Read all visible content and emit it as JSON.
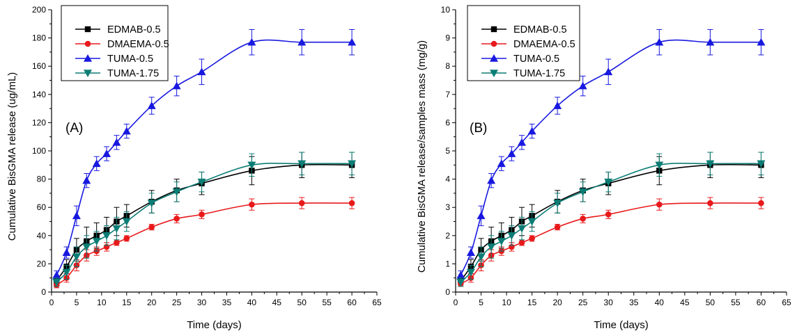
{
  "chart_data": [
    {
      "type": "line",
      "panel_label": "(A)",
      "xlabel": "Time (days)",
      "ylabel": "Cumulative BisGMA release (ug/mL)",
      "xlim": [
        0,
        65
      ],
      "ylim": [
        0,
        200
      ],
      "xticks": [
        0,
        5,
        10,
        15,
        20,
        25,
        30,
        35,
        40,
        45,
        50,
        55,
        60,
        65
      ],
      "yticks": [
        0,
        20,
        40,
        60,
        80,
        100,
        120,
        140,
        160,
        180,
        200
      ],
      "grid": false,
      "legend_position": "top-left",
      "x": [
        1,
        3,
        5,
        7,
        9,
        11,
        13,
        15,
        20,
        25,
        30,
        40,
        50,
        60
      ],
      "series": [
        {
          "name": "EDMAB-0.5",
          "color": "#000000",
          "marker": "square",
          "values": [
            8,
            18,
            30,
            36,
            40,
            44,
            50,
            54,
            64,
            72,
            77,
            86,
            90,
            90
          ],
          "errors": [
            3,
            5,
            8,
            10,
            9,
            9,
            10,
            8,
            8,
            8,
            8,
            10,
            9,
            9
          ]
        },
        {
          "name": "DMAEMA-0.5",
          "color": "#e8191b",
          "marker": "circle",
          "values": [
            5,
            10,
            19,
            26,
            29,
            32,
            35,
            38,
            46,
            52,
            55,
            62,
            63,
            63
          ],
          "errors": [
            2,
            3,
            4,
            4,
            3,
            3,
            2,
            2,
            2,
            3,
            3,
            4,
            4,
            4
          ]
        },
        {
          "name": "TUMA-0.5",
          "color": "#1818e0",
          "marker": "triangle-up",
          "values": [
            12,
            28,
            54,
            79,
            91,
            98,
            106,
            114,
            132,
            146,
            156,
            177,
            177,
            177
          ],
          "errors": [
            3,
            4,
            7,
            5,
            5,
            5,
            5,
            5,
            6,
            7,
            9,
            9,
            9,
            9
          ]
        },
        {
          "name": "TUMA-1.75",
          "color": "#0b7d75",
          "marker": "triangle-down",
          "values": [
            7,
            14,
            25,
            32,
            36,
            40,
            45,
            50,
            63,
            71,
            78,
            90,
            91,
            91
          ],
          "errors": [
            3,
            5,
            7,
            8,
            7,
            7,
            8,
            7,
            7,
            7,
            7,
            8,
            8,
            8
          ]
        }
      ]
    },
    {
      "type": "line",
      "panel_label": "(B)",
      "xlabel": "Time (days)",
      "ylabel": "Cumulative BisGMA release/samples mass (mg/g)",
      "xlim": [
        0,
        65
      ],
      "ylim": [
        0,
        10
      ],
      "xticks": [
        0,
        5,
        10,
        15,
        20,
        25,
        30,
        35,
        40,
        45,
        50,
        55,
        60,
        65
      ],
      "yticks": [
        0,
        1,
        2,
        3,
        4,
        5,
        6,
        7,
        8,
        9,
        10
      ],
      "grid": false,
      "legend_position": "top-left",
      "x": [
        1,
        3,
        5,
        7,
        9,
        11,
        13,
        15,
        20,
        25,
        30,
        40,
        50,
        60
      ],
      "series": [
        {
          "name": "EDMAB-0.5",
          "color": "#000000",
          "marker": "square",
          "values": [
            0.4,
            0.9,
            1.5,
            1.8,
            2.0,
            2.2,
            2.5,
            2.7,
            3.2,
            3.6,
            3.85,
            4.3,
            4.5,
            4.5
          ],
          "errors": [
            0.15,
            0.25,
            0.4,
            0.5,
            0.45,
            0.45,
            0.5,
            0.4,
            0.4,
            0.4,
            0.4,
            0.5,
            0.45,
            0.45
          ]
        },
        {
          "name": "DMAEMA-0.5",
          "color": "#e8191b",
          "marker": "circle",
          "values": [
            0.3,
            0.5,
            0.95,
            1.3,
            1.45,
            1.6,
            1.75,
            1.9,
            2.3,
            2.6,
            2.75,
            3.1,
            3.15,
            3.15
          ],
          "errors": [
            0.1,
            0.15,
            0.2,
            0.2,
            0.15,
            0.15,
            0.1,
            0.1,
            0.1,
            0.15,
            0.15,
            0.2,
            0.2,
            0.2
          ]
        },
        {
          "name": "TUMA-0.5",
          "color": "#1818e0",
          "marker": "triangle-up",
          "values": [
            0.6,
            1.4,
            2.7,
            3.95,
            4.55,
            4.9,
            5.3,
            5.7,
            6.6,
            7.3,
            7.8,
            8.85,
            8.85,
            8.85
          ],
          "errors": [
            0.15,
            0.2,
            0.35,
            0.25,
            0.25,
            0.25,
            0.25,
            0.25,
            0.3,
            0.35,
            0.45,
            0.45,
            0.45,
            0.45
          ]
        },
        {
          "name": "TUMA-1.75",
          "color": "#0b7d75",
          "marker": "triangle-down",
          "values": [
            0.35,
            0.7,
            1.25,
            1.6,
            1.8,
            2.0,
            2.25,
            2.5,
            3.15,
            3.55,
            3.9,
            4.5,
            4.55,
            4.55
          ],
          "errors": [
            0.15,
            0.25,
            0.35,
            0.4,
            0.35,
            0.35,
            0.4,
            0.35,
            0.35,
            0.35,
            0.35,
            0.4,
            0.4,
            0.4
          ]
        }
      ]
    }
  ]
}
